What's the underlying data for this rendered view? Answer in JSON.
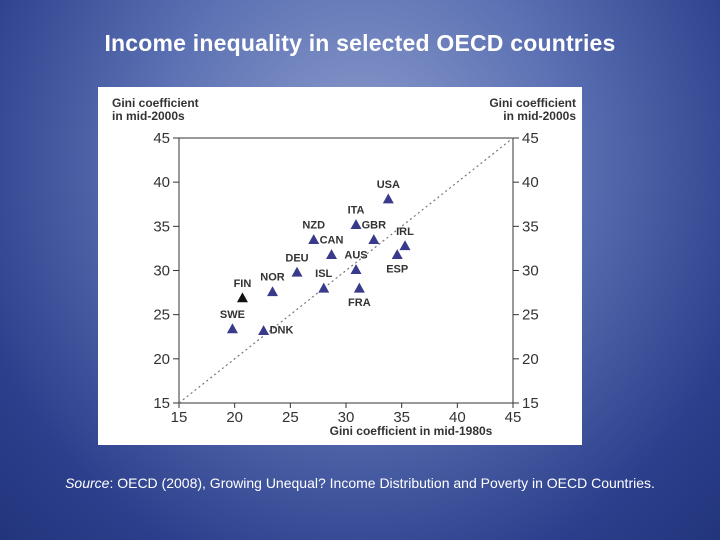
{
  "slide": {
    "title": "Income inequality in selected OECD countries",
    "source_label": "Source",
    "source_text": ": OECD (2008), Growing Unequal? Income Distribution and Poverty in OECD Countries."
  },
  "chart_data": {
    "type": "scatter",
    "ylabel_left": [
      "Gini coefficient",
      "in mid-2000s"
    ],
    "ylabel_right": [
      "Gini coefficient",
      "in mid-2000s"
    ],
    "xlabel": "Gini coefficient in mid-1980s",
    "xlim": [
      15,
      45
    ],
    "ylim": [
      15,
      45
    ],
    "x_ticks": [
      15,
      20,
      25,
      30,
      35,
      40,
      45
    ],
    "y_ticks": [
      15,
      20,
      25,
      30,
      35,
      40,
      45
    ],
    "grid": false,
    "reference_line": "45-degree dotted diagonal",
    "marker_color": "#3a3a8c",
    "highlight_color": "#111111",
    "points": [
      {
        "label": "USA",
        "x": 33.8,
        "y": 38.1
      },
      {
        "label": "ITA",
        "x": 30.9,
        "y": 35.2
      },
      {
        "label": "NZD",
        "x": 27.1,
        "y": 33.5
      },
      {
        "label": "GBR",
        "x": 32.5,
        "y": 33.5
      },
      {
        "label": "IRL",
        "x": 35.3,
        "y": 32.8
      },
      {
        "label": "CAN",
        "x": 28.7,
        "y": 31.8
      },
      {
        "label": "ESP",
        "x": 34.6,
        "y": 31.8
      },
      {
        "label": "AUS",
        "x": 30.9,
        "y": 30.1
      },
      {
        "label": "DEU",
        "x": 25.6,
        "y": 29.8
      },
      {
        "label": "ISL",
        "x": 28.0,
        "y": 28.0
      },
      {
        "label": "FRA",
        "x": 31.2,
        "y": 28.0
      },
      {
        "label": "NOR",
        "x": 23.4,
        "y": 27.6
      },
      {
        "label": "FIN",
        "x": 20.7,
        "y": 26.9,
        "highlight": true
      },
      {
        "label": "SWE",
        "x": 19.8,
        "y": 23.4
      },
      {
        "label": "DNK",
        "x": 22.6,
        "y": 23.2
      }
    ]
  }
}
